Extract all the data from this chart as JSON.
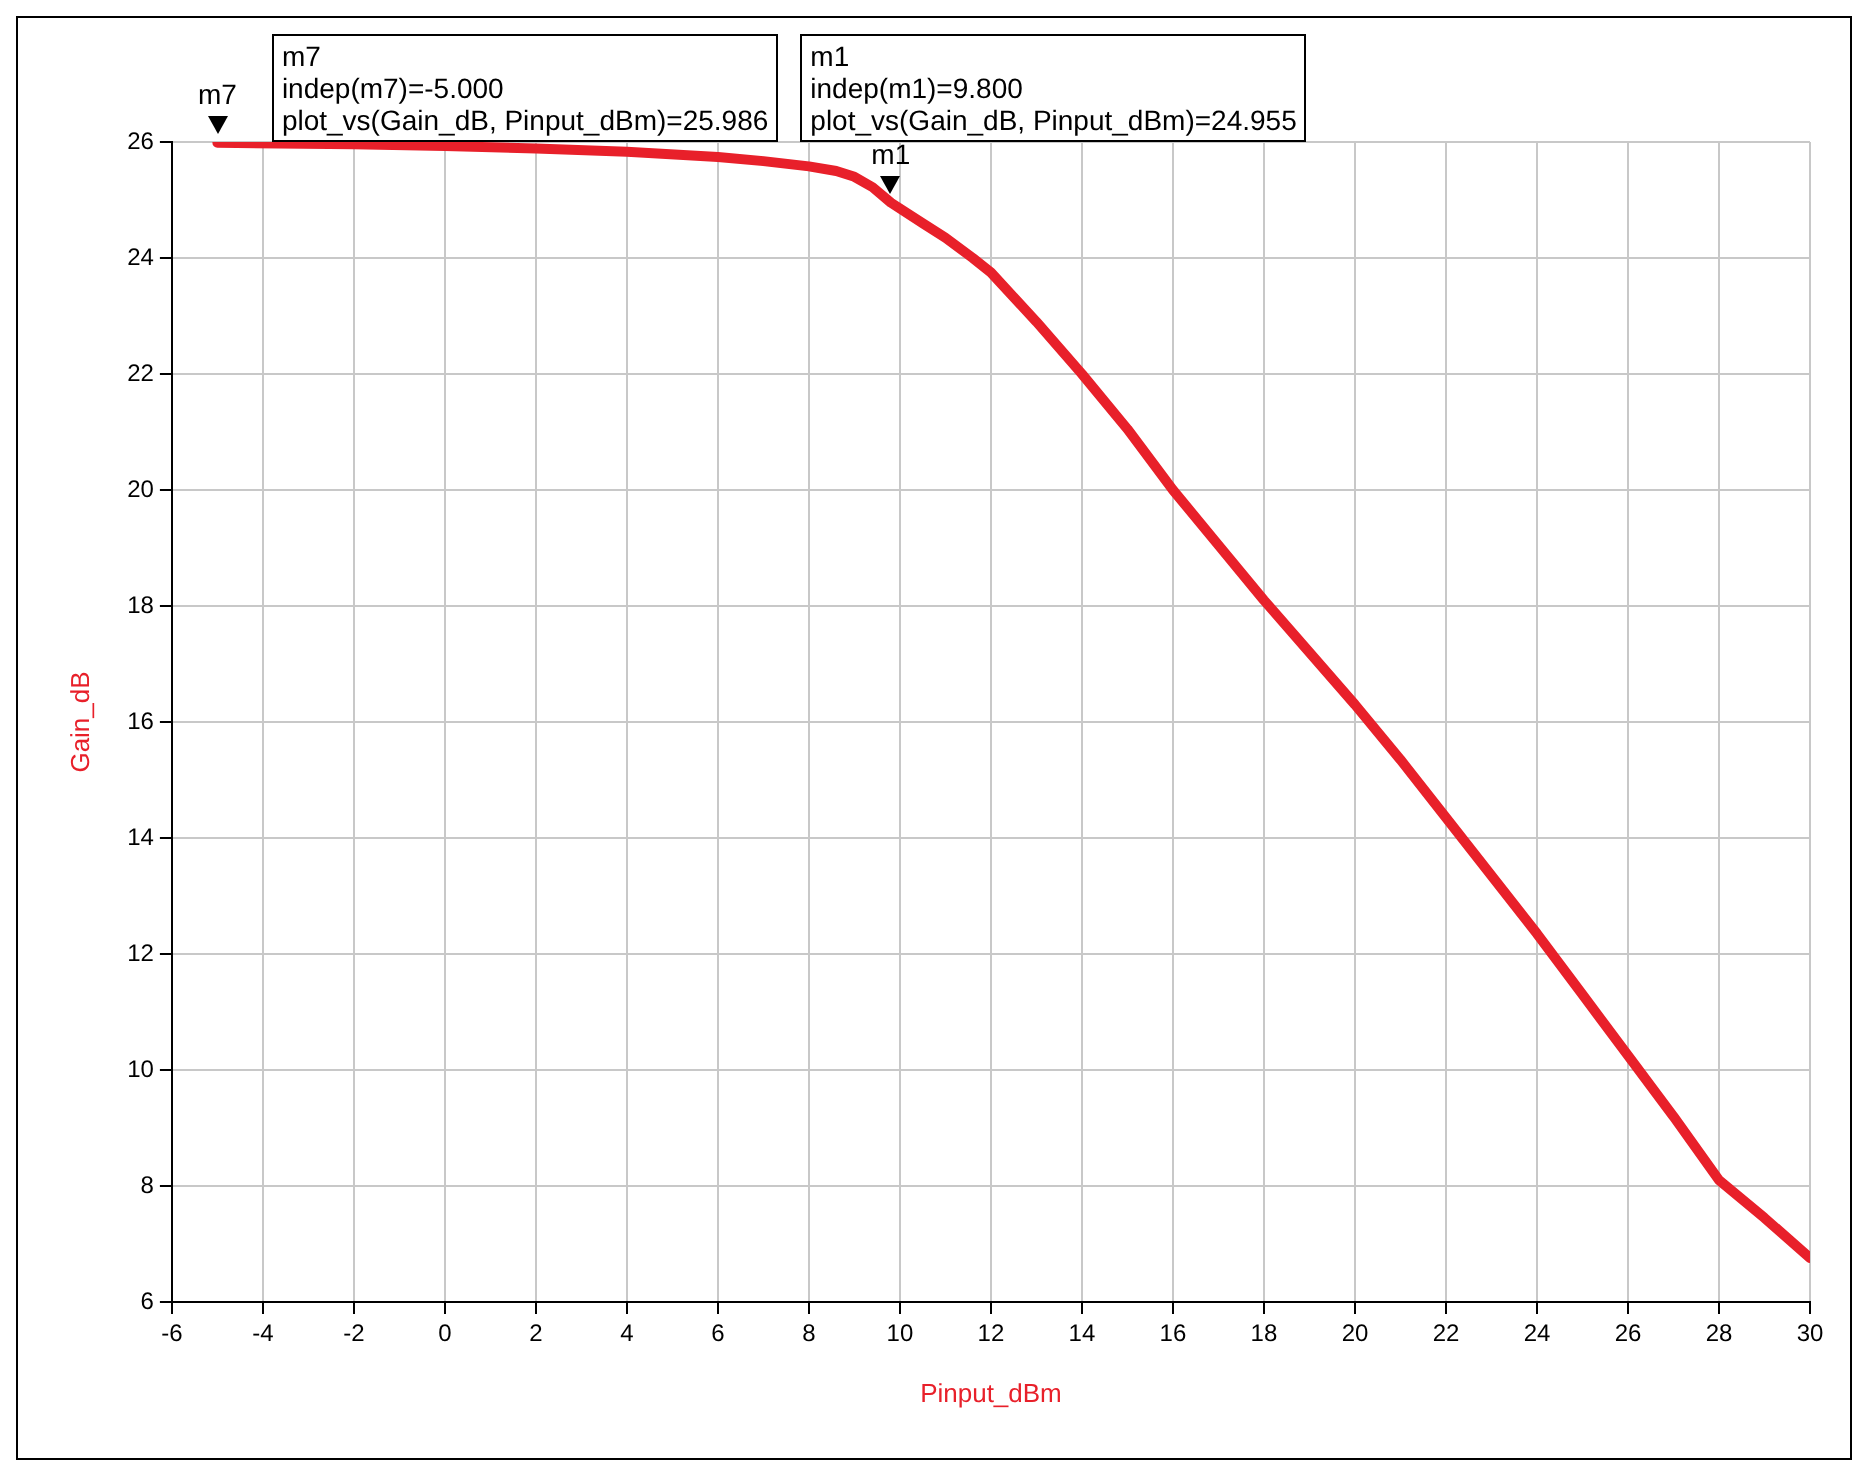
{
  "chart_data": {
    "type": "line",
    "xlabel": "Pinput_dBm",
    "ylabel": "Gain_dB",
    "x": [
      -5,
      -2,
      0,
      2,
      4,
      6,
      7,
      8,
      8.6,
      9,
      9.4,
      9.8,
      10.5,
      11,
      11.6,
      12,
      13,
      14,
      15,
      16,
      17,
      18,
      19,
      20,
      21,
      22,
      23,
      24,
      25,
      26,
      27,
      28,
      29,
      30
    ],
    "series": [
      {
        "color": "#e8202a",
        "values": [
          25.986,
          25.96,
          25.93,
          25.89,
          25.83,
          25.74,
          25.67,
          25.58,
          25.5,
          25.4,
          25.22,
          24.955,
          24.6,
          24.35,
          24.0,
          23.75,
          22.9,
          22.0,
          21.05,
          20.0,
          19.05,
          18.1,
          17.2,
          16.3,
          15.35,
          14.35,
          13.35,
          12.35,
          11.3,
          10.25,
          9.2,
          8.1,
          7.45,
          6.76
        ]
      }
    ],
    "xlim": [
      -6,
      30
    ],
    "ylim": [
      6,
      26
    ],
    "xticks": [
      -6,
      -4,
      -2,
      0,
      2,
      4,
      6,
      8,
      10,
      12,
      14,
      16,
      18,
      20,
      22,
      24,
      26,
      28,
      30
    ],
    "yticks": [
      6,
      8,
      10,
      12,
      14,
      16,
      18,
      20,
      22,
      24,
      26
    ],
    "grid": true,
    "legend": false,
    "marker": "none",
    "line_style": "solid",
    "annotations": [
      {
        "text": "m7",
        "x": -5,
        "y": 25.986
      },
      "m7\nindep(m7)=-5.000\nplot_vs(Gain_dB, Pinput_dBm)=25.986",
      {
        "text": "m1",
        "x": 9.8,
        "y": 24.955
      },
      "m1\nindep(m1)=9.800\nplot_vs(Gain_dB, Pinput_dBm)=24.955"
    ]
  }
}
